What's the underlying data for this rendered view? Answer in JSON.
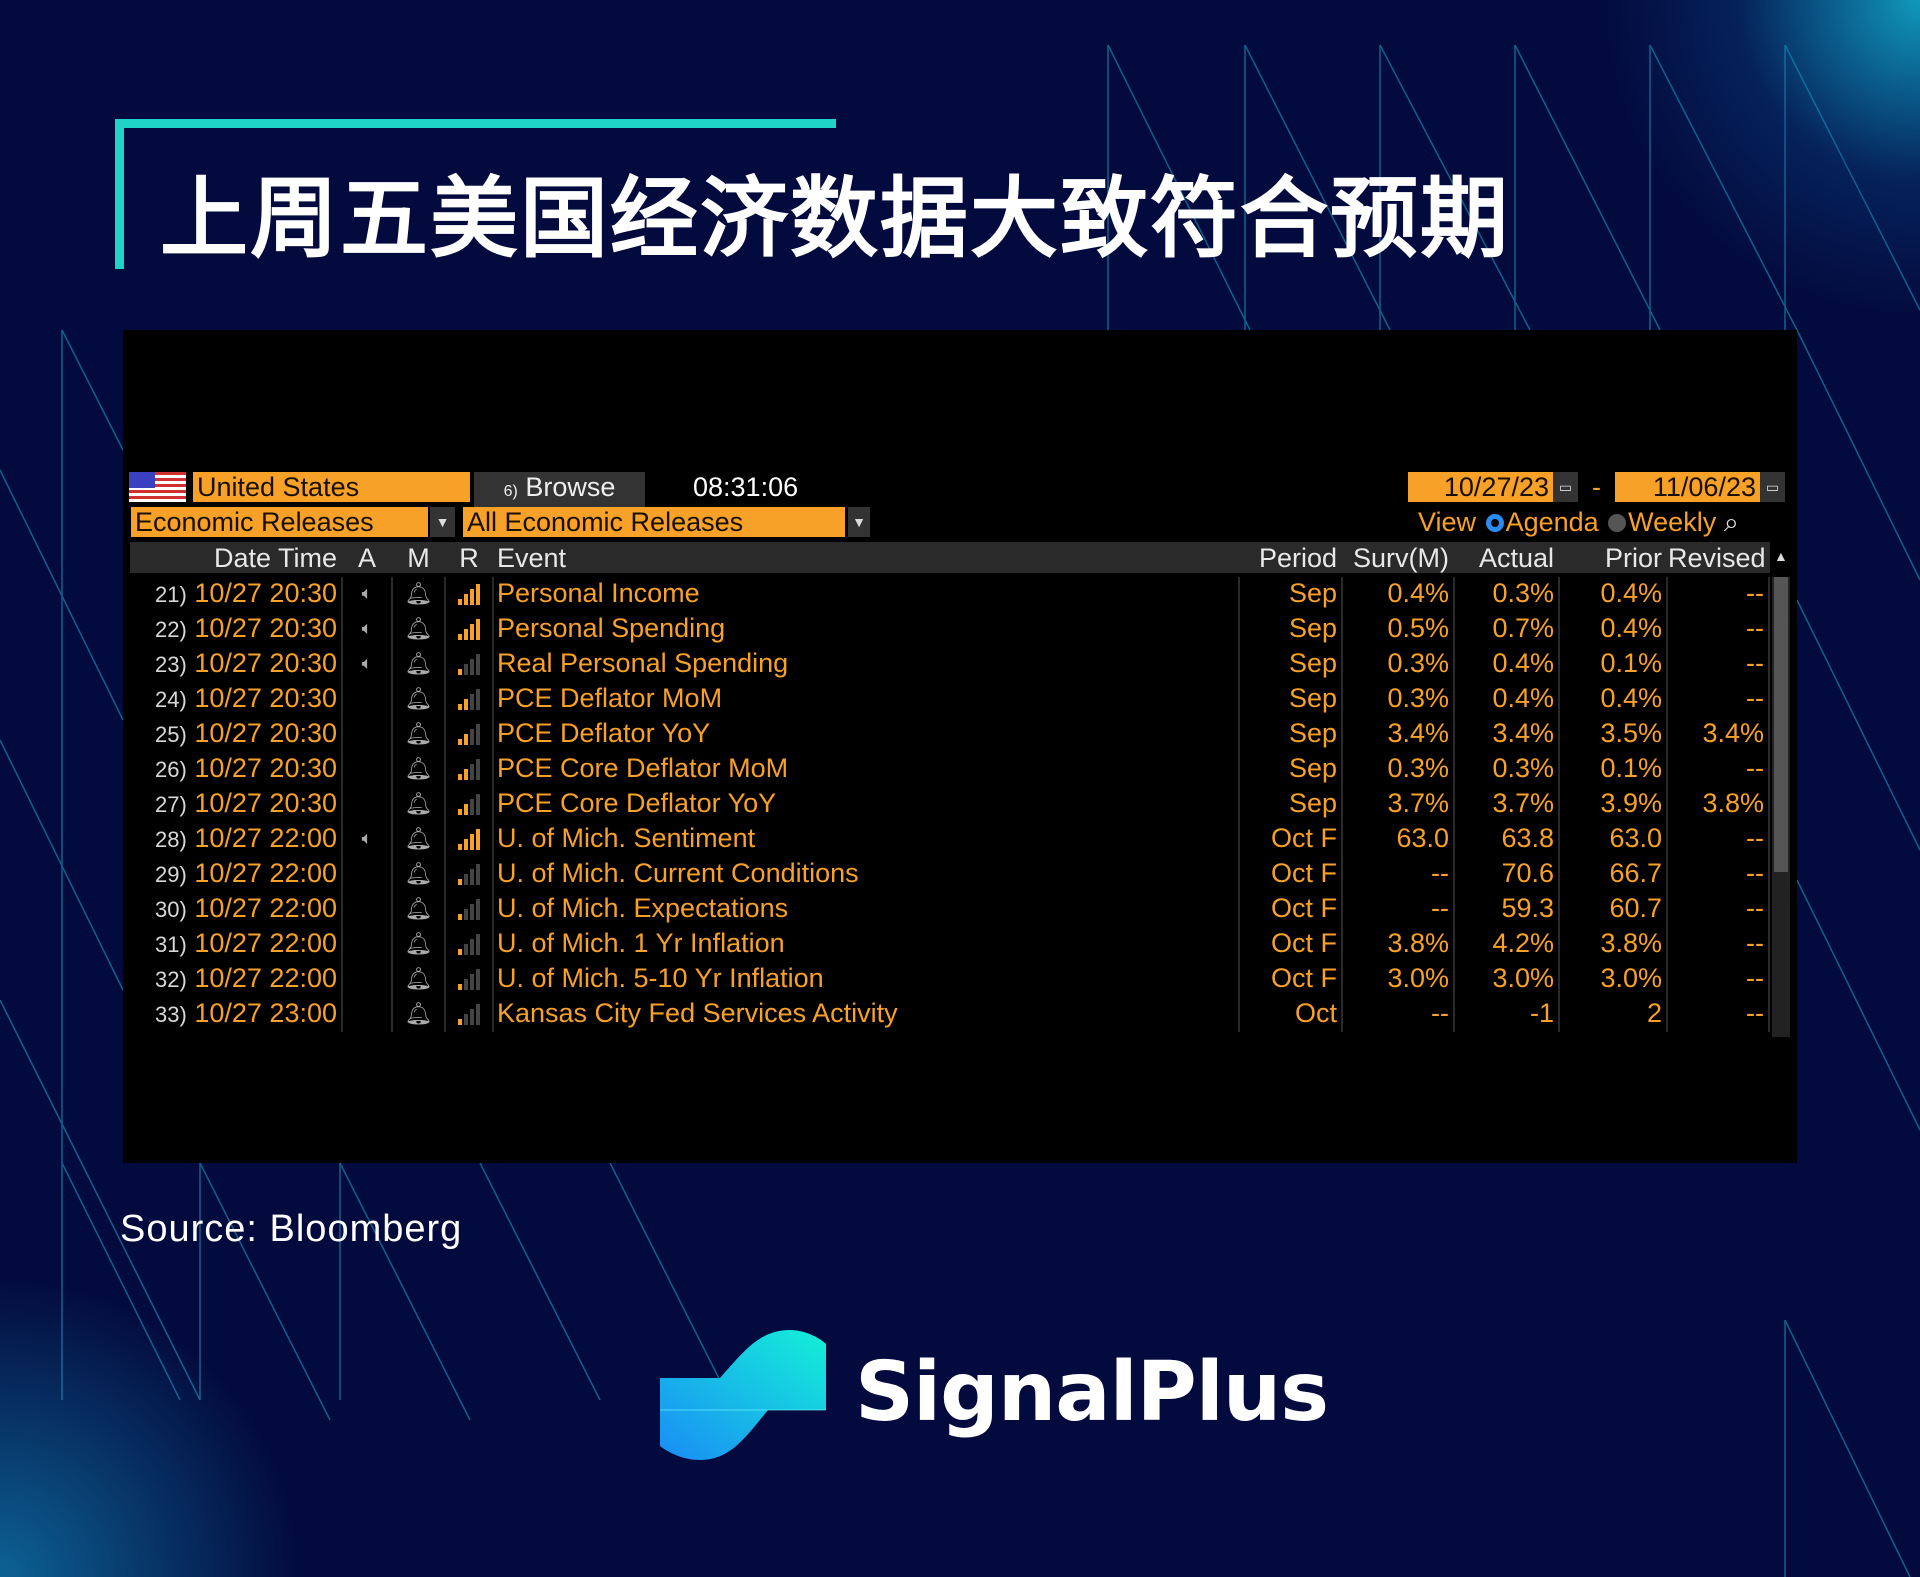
{
  "title": "上周五美国经济数据大致符合预期",
  "toolbar": {
    "country": "United States",
    "browse_label": "Browse",
    "browse_prefix": "6)",
    "time": "08:31:06",
    "date_from": "10/27/23",
    "date_sep": "-",
    "date_to": "11/06/23",
    "category": "Economic Releases",
    "filter": "All Economic Releases",
    "view_label": "View",
    "view_options": [
      {
        "label": "Agenda",
        "selected": true
      },
      {
        "label": "Weekly",
        "selected": false
      }
    ]
  },
  "colors": {
    "accent": "#f7a128",
    "background": "#030a3d",
    "title_line": "#1fd3c9",
    "radio_selected": "#2a8cf0"
  },
  "table": {
    "headers": {
      "datetime": "Date Time",
      "a": "A",
      "m": "M",
      "r": "R",
      "event": "Event",
      "period": "Period",
      "surv": "Surv(M)",
      "actual": "Actual",
      "prior": "Prior",
      "revised": "Revised"
    },
    "rows": [
      {
        "idx": "21)",
        "dt": "10/27 20:30",
        "alert": true,
        "relevance": 4,
        "event": "Personal Income",
        "period": "Sep",
        "surv": "0.4%",
        "actual": "0.3%",
        "prior": "0.4%",
        "revised": "--"
      },
      {
        "idx": "22)",
        "dt": "10/27 20:30",
        "alert": true,
        "relevance": 4,
        "event": "Personal Spending",
        "period": "Sep",
        "surv": "0.5%",
        "actual": "0.7%",
        "prior": "0.4%",
        "revised": "--"
      },
      {
        "idx": "23)",
        "dt": "10/27 20:30",
        "alert": true,
        "relevance": 1,
        "event": "Real Personal Spending",
        "period": "Sep",
        "surv": "0.3%",
        "actual": "0.4%",
        "prior": "0.1%",
        "revised": "--"
      },
      {
        "idx": "24)",
        "dt": "10/27 20:30",
        "alert": false,
        "relevance": 2,
        "event": "PCE Deflator MoM",
        "period": "Sep",
        "surv": "0.3%",
        "actual": "0.4%",
        "prior": "0.4%",
        "revised": "--"
      },
      {
        "idx": "25)",
        "dt": "10/27 20:30",
        "alert": false,
        "relevance": 2,
        "event": "PCE Deflator YoY",
        "period": "Sep",
        "surv": "3.4%",
        "actual": "3.4%",
        "prior": "3.5%",
        "revised": "3.4%"
      },
      {
        "idx": "26)",
        "dt": "10/27 20:30",
        "alert": false,
        "relevance": 2,
        "event": "PCE Core Deflator MoM",
        "period": "Sep",
        "surv": "0.3%",
        "actual": "0.3%",
        "prior": "0.1%",
        "revised": "--"
      },
      {
        "idx": "27)",
        "dt": "10/27 20:30",
        "alert": false,
        "relevance": 2,
        "event": "PCE Core Deflator YoY",
        "period": "Sep",
        "surv": "3.7%",
        "actual": "3.7%",
        "prior": "3.9%",
        "revised": "3.8%"
      },
      {
        "idx": "28)",
        "dt": "10/27 22:00",
        "alert": true,
        "relevance": 4,
        "event": "U. of Mich. Sentiment",
        "period": "Oct F",
        "surv": "63.0",
        "actual": "63.8",
        "prior": "63.0",
        "revised": "--"
      },
      {
        "idx": "29)",
        "dt": "10/27 22:00",
        "alert": false,
        "relevance": 1,
        "event": "U. of Mich. Current Conditions",
        "period": "Oct F",
        "surv": "--",
        "actual": "70.6",
        "prior": "66.7",
        "revised": "--"
      },
      {
        "idx": "30)",
        "dt": "10/27 22:00",
        "alert": false,
        "relevance": 1,
        "event": "U. of Mich. Expectations",
        "period": "Oct F",
        "surv": "--",
        "actual": "59.3",
        "prior": "60.7",
        "revised": "--"
      },
      {
        "idx": "31)",
        "dt": "10/27 22:00",
        "alert": false,
        "relevance": 1,
        "event": "U. of Mich. 1 Yr Inflation",
        "period": "Oct F",
        "surv": "3.8%",
        "actual": "4.2%",
        "prior": "3.8%",
        "revised": "--"
      },
      {
        "idx": "32)",
        "dt": "10/27 22:00",
        "alert": false,
        "relevance": 1,
        "event": "U. of Mich. 5-10 Yr Inflation",
        "period": "Oct F",
        "surv": "3.0%",
        "actual": "3.0%",
        "prior": "3.0%",
        "revised": "--"
      },
      {
        "idx": "33)",
        "dt": "10/27 23:00",
        "alert": false,
        "relevance": 1,
        "event": "Kansas City Fed Services Activity",
        "period": "Oct",
        "surv": "--",
        "actual": "-1",
        "prior": "2",
        "revised": "--"
      }
    ]
  },
  "source": "Source: Bloomberg",
  "brand": {
    "name": "SignalPlus"
  }
}
